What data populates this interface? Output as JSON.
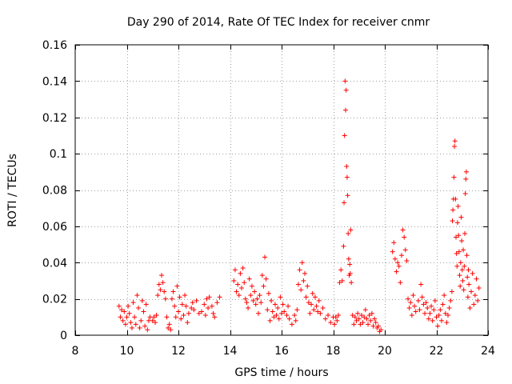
{
  "chart_data": {
    "type": "scatter",
    "title": "Day 290 of 2014, Rate Of TEC Index for receiver cnmr",
    "xlabel": "GPS time / hours",
    "ylabel": "ROTI / TECUs",
    "xlim": [
      8,
      24
    ],
    "ylim": [
      0,
      0.16
    ],
    "grid": true,
    "marker": "+",
    "xticks": [
      8,
      10,
      12,
      14,
      16,
      18,
      20,
      22,
      24
    ],
    "xtick_labels": [
      "8",
      "10",
      "12",
      "14",
      "16",
      "18",
      "20",
      "22",
      "24"
    ],
    "yticks": [
      0,
      0.02,
      0.04,
      0.06,
      0.08,
      0.1,
      0.12,
      0.14,
      0.16
    ],
    "ytick_labels": [
      "0",
      "0.02",
      "0.04",
      "0.06",
      "0.08",
      "0.1",
      "0.12",
      "0.14",
      "0.16"
    ],
    "series": [
      {
        "name": "ROTI",
        "color": "#ff0000",
        "points": [
          [
            9.7,
            0.016
          ],
          [
            9.75,
            0.01
          ],
          [
            9.8,
            0.014
          ],
          [
            9.85,
            0.008
          ],
          [
            9.9,
            0.013
          ],
          [
            9.95,
            0.006
          ],
          [
            10.0,
            0.01
          ],
          [
            10.05,
            0.016
          ],
          [
            10.1,
            0.012
          ],
          [
            10.15,
            0.007
          ],
          [
            10.2,
            0.004
          ],
          [
            10.25,
            0.018
          ],
          [
            10.3,
            0.01
          ],
          [
            10.35,
            0.006
          ],
          [
            10.4,
            0.022
          ],
          [
            10.45,
            0.015
          ],
          [
            10.5,
            0.004
          ],
          [
            10.55,
            0.008
          ],
          [
            10.6,
            0.019
          ],
          [
            10.65,
            0.013
          ],
          [
            10.7,
            0.005
          ],
          [
            10.75,
            0.017
          ],
          [
            10.8,
            0.003
          ],
          [
            10.85,
            0.008
          ],
          [
            10.9,
            0.01
          ],
          [
            11.0,
            0.008
          ],
          [
            11.05,
            0.01
          ],
          [
            11.1,
            0.007
          ],
          [
            11.15,
            0.011
          ],
          [
            11.2,
            0.022
          ],
          [
            11.25,
            0.028
          ],
          [
            11.3,
            0.025
          ],
          [
            11.35,
            0.033
          ],
          [
            11.4,
            0.029
          ],
          [
            11.45,
            0.024
          ],
          [
            11.5,
            0.02
          ],
          [
            11.55,
            0.01
          ],
          [
            11.6,
            0.004
          ],
          [
            11.65,
            0.006
          ],
          [
            11.7,
            0.003
          ],
          [
            11.75,
            0.02
          ],
          [
            11.8,
            0.024
          ],
          [
            11.85,
            0.016
          ],
          [
            11.9,
            0.01
          ],
          [
            11.95,
            0.027
          ],
          [
            12.0,
            0.013
          ],
          [
            12.05,
            0.021
          ],
          [
            12.1,
            0.009
          ],
          [
            12.15,
            0.017
          ],
          [
            12.2,
            0.011
          ],
          [
            12.25,
            0.022
          ],
          [
            12.3,
            0.016
          ],
          [
            12.35,
            0.007
          ],
          [
            12.4,
            0.012
          ],
          [
            12.5,
            0.015
          ],
          [
            12.55,
            0.018
          ],
          [
            12.6,
            0.014
          ],
          [
            12.7,
            0.019
          ],
          [
            12.8,
            0.012
          ],
          [
            12.9,
            0.013
          ],
          [
            13.0,
            0.017
          ],
          [
            13.05,
            0.011
          ],
          [
            13.1,
            0.02
          ],
          [
            13.15,
            0.015
          ],
          [
            13.2,
            0.021
          ],
          [
            13.3,
            0.016
          ],
          [
            13.35,
            0.012
          ],
          [
            13.4,
            0.01
          ],
          [
            13.5,
            0.018
          ],
          [
            13.6,
            0.021
          ],
          [
            14.15,
            0.03
          ],
          [
            14.2,
            0.036
          ],
          [
            14.25,
            0.024
          ],
          [
            14.3,
            0.028
          ],
          [
            14.35,
            0.022
          ],
          [
            14.4,
            0.034
          ],
          [
            14.45,
            0.026
          ],
          [
            14.5,
            0.037
          ],
          [
            14.55,
            0.029
          ],
          [
            14.6,
            0.02
          ],
          [
            14.65,
            0.018
          ],
          [
            14.7,
            0.015
          ],
          [
            14.75,
            0.031
          ],
          [
            14.8,
            0.022
          ],
          [
            14.85,
            0.027
          ],
          [
            14.9,
            0.019
          ],
          [
            14.95,
            0.024
          ],
          [
            15.0,
            0.017
          ],
          [
            15.05,
            0.02
          ],
          [
            15.1,
            0.012
          ],
          [
            15.15,
            0.022
          ],
          [
            15.2,
            0.018
          ],
          [
            15.25,
            0.033
          ],
          [
            15.3,
            0.027
          ],
          [
            15.35,
            0.043
          ],
          [
            15.4,
            0.031
          ],
          [
            15.45,
            0.014
          ],
          [
            15.5,
            0.023
          ],
          [
            15.55,
            0.008
          ],
          [
            15.6,
            0.019
          ],
          [
            15.65,
            0.013
          ],
          [
            15.7,
            0.01
          ],
          [
            15.75,
            0.017
          ],
          [
            15.8,
            0.011
          ],
          [
            15.85,
            0.015
          ],
          [
            15.9,
            0.009
          ],
          [
            15.95,
            0.021
          ],
          [
            16.0,
            0.012
          ],
          [
            16.05,
            0.017
          ],
          [
            16.1,
            0.013
          ],
          [
            16.2,
            0.011
          ],
          [
            16.25,
            0.016
          ],
          [
            16.3,
            0.009
          ],
          [
            16.4,
            0.006
          ],
          [
            16.5,
            0.011
          ],
          [
            16.55,
            0.008
          ],
          [
            16.6,
            0.014
          ],
          [
            16.65,
            0.028
          ],
          [
            16.7,
            0.036
          ],
          [
            16.75,
            0.025
          ],
          [
            16.8,
            0.04
          ],
          [
            16.85,
            0.03
          ],
          [
            16.9,
            0.034
          ],
          [
            16.95,
            0.021
          ],
          [
            17.0,
            0.027
          ],
          [
            17.05,
            0.018
          ],
          [
            17.1,
            0.012
          ],
          [
            17.15,
            0.017
          ],
          [
            17.2,
            0.023
          ],
          [
            17.25,
            0.014
          ],
          [
            17.3,
            0.021
          ],
          [
            17.35,
            0.016
          ],
          [
            17.4,
            0.013
          ],
          [
            17.45,
            0.019
          ],
          [
            17.5,
            0.012
          ],
          [
            17.6,
            0.015
          ],
          [
            17.7,
            0.009
          ],
          [
            17.8,
            0.011
          ],
          [
            17.9,
            0.007
          ],
          [
            18.0,
            0.01
          ],
          [
            18.05,
            0.006
          ],
          [
            18.1,
            0.01
          ],
          [
            18.15,
            0.008
          ],
          [
            18.2,
            0.011
          ],
          [
            18.25,
            0.029
          ],
          [
            18.3,
            0.036
          ],
          [
            18.35,
            0.03
          ],
          [
            18.4,
            0.049
          ],
          [
            18.42,
            0.073
          ],
          [
            18.44,
            0.11
          ],
          [
            18.46,
            0.14
          ],
          [
            18.48,
            0.124
          ],
          [
            18.5,
            0.135
          ],
          [
            18.52,
            0.093
          ],
          [
            18.54,
            0.087
          ],
          [
            18.56,
            0.077
          ],
          [
            18.58,
            0.056
          ],
          [
            18.6,
            0.042
          ],
          [
            18.62,
            0.033
          ],
          [
            18.64,
            0.039
          ],
          [
            18.66,
            0.034
          ],
          [
            18.68,
            0.058
          ],
          [
            18.7,
            0.029
          ],
          [
            18.75,
            0.011
          ],
          [
            18.8,
            0.006
          ],
          [
            18.85,
            0.01
          ],
          [
            18.9,
            0.008
          ],
          [
            18.95,
            0.012
          ],
          [
            19.0,
            0.009
          ],
          [
            19.05,
            0.006
          ],
          [
            19.1,
            0.011
          ],
          [
            19.15,
            0.007
          ],
          [
            19.2,
            0.01
          ],
          [
            19.25,
            0.014
          ],
          [
            19.3,
            0.009
          ],
          [
            19.35,
            0.006
          ],
          [
            19.4,
            0.011
          ],
          [
            19.45,
            0.008
          ],
          [
            19.5,
            0.012
          ],
          [
            19.55,
            0.005
          ],
          [
            19.6,
            0.009
          ],
          [
            19.65,
            0.007
          ],
          [
            19.7,
            0.004
          ],
          [
            19.75,
            0.005
          ],
          [
            19.8,
            0.002
          ],
          [
            19.85,
            0.003
          ],
          [
            20.3,
            0.046
          ],
          [
            20.35,
            0.051
          ],
          [
            20.4,
            0.042
          ],
          [
            20.45,
            0.035
          ],
          [
            20.5,
            0.04
          ],
          [
            20.55,
            0.038
          ],
          [
            20.6,
            0.029
          ],
          [
            20.65,
            0.044
          ],
          [
            20.7,
            0.058
          ],
          [
            20.75,
            0.054
          ],
          [
            20.8,
            0.047
          ],
          [
            20.85,
            0.041
          ],
          [
            20.9,
            0.02
          ],
          [
            20.95,
            0.015
          ],
          [
            21.0,
            0.018
          ],
          [
            21.05,
            0.011
          ],
          [
            21.1,
            0.022
          ],
          [
            21.15,
            0.016
          ],
          [
            21.2,
            0.013
          ],
          [
            21.3,
            0.019
          ],
          [
            21.35,
            0.014
          ],
          [
            21.4,
            0.028
          ],
          [
            21.45,
            0.021
          ],
          [
            21.5,
            0.017
          ],
          [
            21.55,
            0.012
          ],
          [
            21.6,
            0.018
          ],
          [
            21.65,
            0.015
          ],
          [
            21.7,
            0.009
          ],
          [
            21.75,
            0.012
          ],
          [
            21.8,
            0.016
          ],
          [
            21.85,
            0.008
          ],
          [
            21.9,
            0.014
          ],
          [
            21.95,
            0.019
          ],
          [
            22.0,
            0.01
          ],
          [
            22.05,
            0.005
          ],
          [
            22.1,
            0.011
          ],
          [
            22.15,
            0.014
          ],
          [
            22.2,
            0.008
          ],
          [
            22.25,
            0.017
          ],
          [
            22.3,
            0.022
          ],
          [
            22.35,
            0.012
          ],
          [
            22.4,
            0.007
          ],
          [
            22.45,
            0.011
          ],
          [
            22.5,
            0.015
          ],
          [
            22.55,
            0.019
          ],
          [
            22.6,
            0.024
          ],
          [
            22.62,
            0.063
          ],
          [
            22.64,
            0.069
          ],
          [
            22.66,
            0.075
          ],
          [
            22.68,
            0.087
          ],
          [
            22.7,
            0.104
          ],
          [
            22.72,
            0.107
          ],
          [
            22.74,
            0.075
          ],
          [
            22.76,
            0.054
          ],
          [
            22.78,
            0.045
          ],
          [
            22.8,
            0.038
          ],
          [
            22.82,
            0.062
          ],
          [
            22.84,
            0.071
          ],
          [
            22.86,
            0.055
          ],
          [
            22.88,
            0.046
          ],
          [
            22.9,
            0.033
          ],
          [
            22.92,
            0.027
          ],
          [
            22.94,
            0.04
          ],
          [
            22.96,
            0.065
          ],
          [
            22.98,
            0.052
          ],
          [
            23.0,
            0.036
          ],
          [
            23.02,
            0.03
          ],
          [
            23.04,
            0.047
          ],
          [
            23.06,
            0.025
          ],
          [
            23.08,
            0.038
          ],
          [
            23.1,
            0.056
          ],
          [
            23.12,
            0.078
          ],
          [
            23.14,
            0.086
          ],
          [
            23.16,
            0.09
          ],
          [
            23.18,
            0.044
          ],
          [
            23.2,
            0.032
          ],
          [
            23.22,
            0.021
          ],
          [
            23.24,
            0.036
          ],
          [
            23.26,
            0.028
          ],
          [
            23.3,
            0.015
          ],
          [
            23.35,
            0.024
          ],
          [
            23.4,
            0.034
          ],
          [
            23.45,
            0.017
          ],
          [
            23.5,
            0.022
          ],
          [
            23.55,
            0.031
          ],
          [
            23.6,
            0.019
          ],
          [
            23.65,
            0.026
          ]
        ]
      }
    ]
  }
}
